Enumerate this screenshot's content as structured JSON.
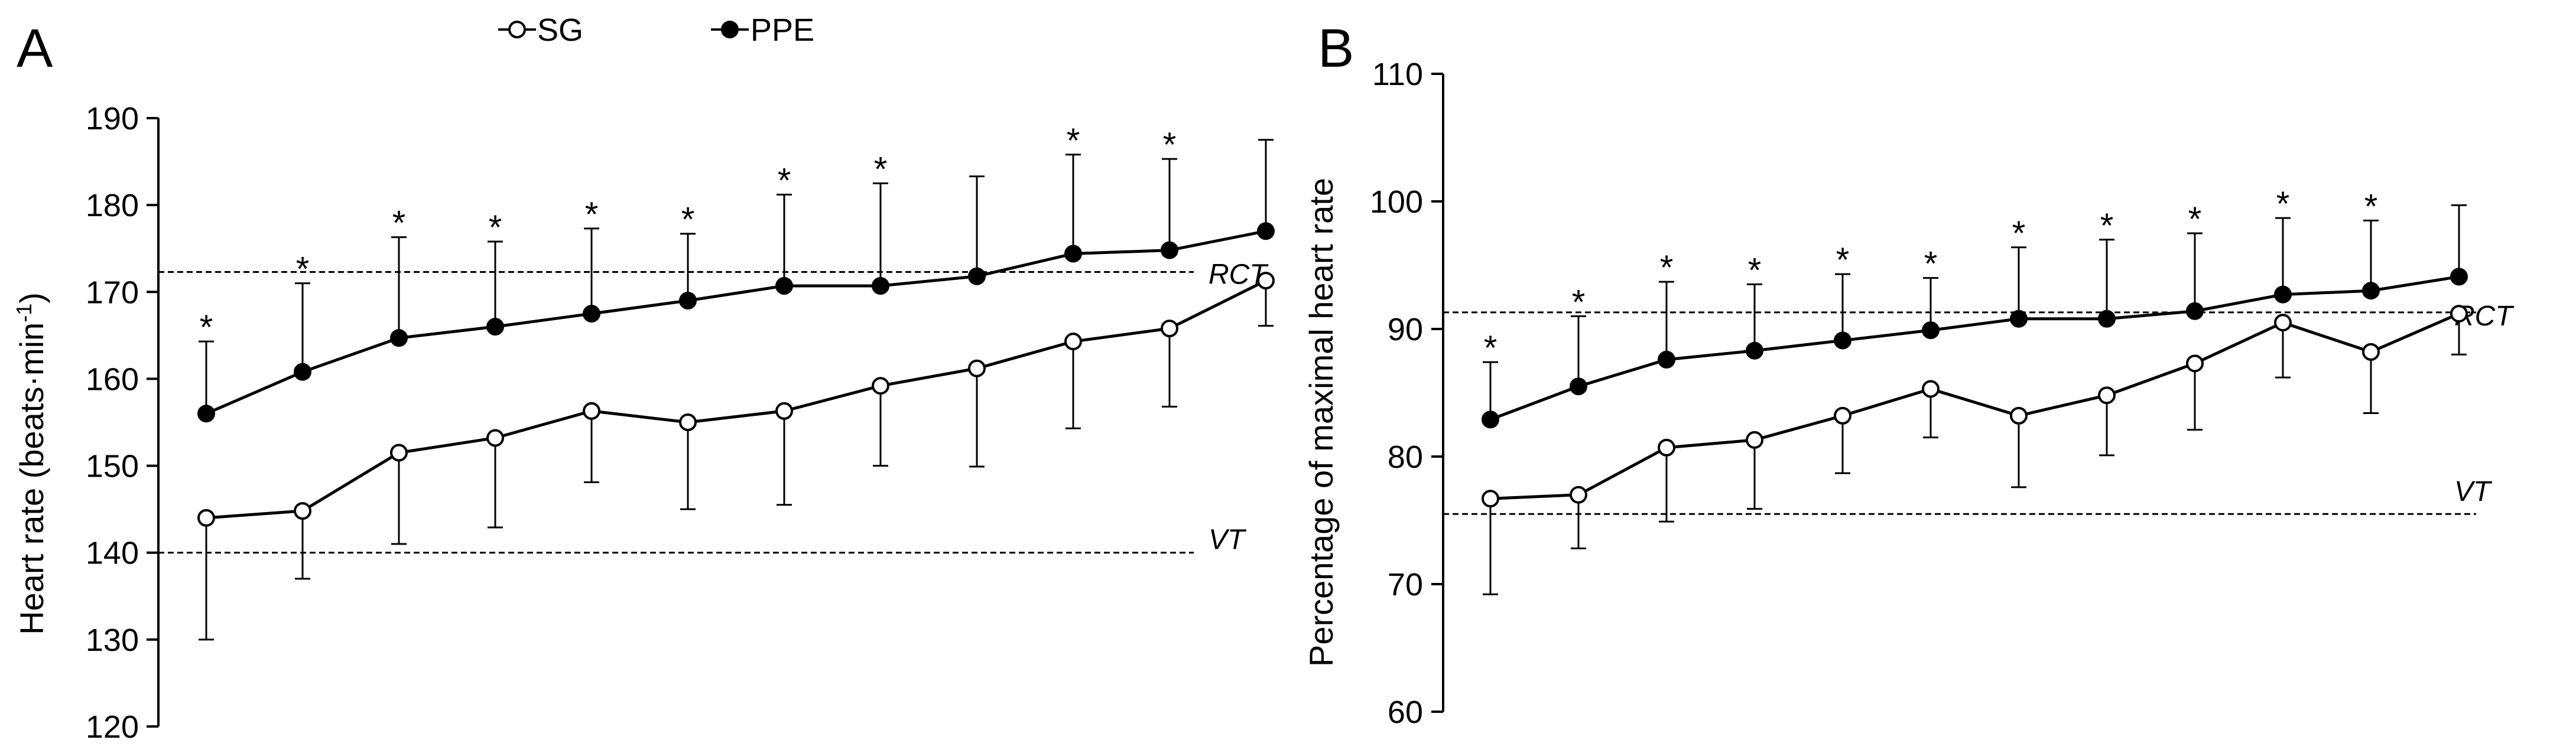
{
  "legend": {
    "sg_label": "SG",
    "ppe_label": "PPE"
  },
  "colors": {
    "sg_fill": "#ffffff",
    "ppe_fill": "#000000",
    "line": "#000000",
    "sd_bar": "#555555"
  },
  "chart_data": [
    {
      "type": "line",
      "panel_label": "A",
      "title": "",
      "xlabel": "",
      "ylabel": "Heart rate (beats·min-1)",
      "ylabel_parts": {
        "main": "Heart rate (beats·min",
        "sup": "-1",
        "close": ")"
      },
      "ylim": [
        120,
        190
      ],
      "yticks": [
        120,
        130,
        140,
        150,
        160,
        170,
        180,
        190
      ],
      "x": [
        1,
        2,
        3,
        4,
        5,
        6,
        7,
        8,
        9,
        10,
        11,
        12
      ],
      "series": [
        {
          "name": "SG",
          "marker": "open-circle",
          "values": [
            144,
            144.8,
            151.5,
            153.2,
            156.3,
            155,
            156.3,
            159.2,
            161.2,
            164.3,
            165.8,
            171.3
          ],
          "sd_direction": "down",
          "sd": [
            14,
            7.8,
            10.5,
            10.3,
            8.2,
            10,
            10.8,
            9.2,
            11.3,
            10,
            9,
            5.2
          ]
        },
        {
          "name": "PPE",
          "marker": "filled-circle",
          "values": [
            156,
            160.8,
            164.7,
            166,
            167.5,
            169,
            170.7,
            170.7,
            171.8,
            174.4,
            174.8,
            177
          ],
          "sd_direction": "up",
          "sd": [
            8.3,
            10.2,
            11.6,
            9.8,
            9.8,
            7.7,
            10.5,
            11.8,
            11.5,
            11.4,
            10.5,
            10.5
          ]
        }
      ],
      "significance": [
        true,
        true,
        true,
        true,
        true,
        true,
        true,
        true,
        false,
        true,
        true,
        false
      ],
      "significance_symbol": "*",
      "reference_lines": [
        {
          "label": "RCT",
          "value": 172.3
        },
        {
          "label": "VT",
          "value": 140
        }
      ]
    },
    {
      "type": "line",
      "panel_label": "B",
      "title": "",
      "xlabel": "",
      "ylabel": "Percentage of maximal heart rate",
      "ylim": [
        60,
        110
      ],
      "yticks": [
        60,
        70,
        80,
        90,
        100,
        110
      ],
      "x": [
        1,
        2,
        3,
        4,
        5,
        6,
        7,
        8,
        9,
        10,
        11,
        12
      ],
      "series": [
        {
          "name": "SG",
          "marker": "open-circle",
          "values": [
            76.7,
            77,
            80.7,
            81.3,
            83.2,
            85.3,
            83.2,
            84.8,
            87.3,
            90.5,
            88.2,
            91.2
          ],
          "sd_direction": "down",
          "sd": [
            7.5,
            4.2,
            5.8,
            5.4,
            4.5,
            3.8,
            5.6,
            4.7,
            5.2,
            4.3,
            4.8,
            3.2
          ]
        },
        {
          "name": "PPE",
          "marker": "filled-circle",
          "values": [
            82.9,
            85.5,
            87.6,
            88.3,
            89.1,
            89.9,
            90.8,
            90.8,
            91.4,
            92.7,
            93,
            94.1
          ],
          "sd_direction": "up",
          "sd": [
            4.5,
            5.5,
            6.1,
            5.2,
            5.2,
            4.1,
            5.6,
            6.2,
            6.1,
            6,
            5.5,
            5.6
          ]
        }
      ],
      "significance": [
        true,
        true,
        true,
        true,
        true,
        true,
        true,
        true,
        true,
        true,
        true,
        false
      ],
      "significance_symbol": "*",
      "reference_lines": [
        {
          "label": "RCT",
          "value": 91.3
        },
        {
          "label": "VT",
          "value": 75.5
        }
      ]
    }
  ]
}
